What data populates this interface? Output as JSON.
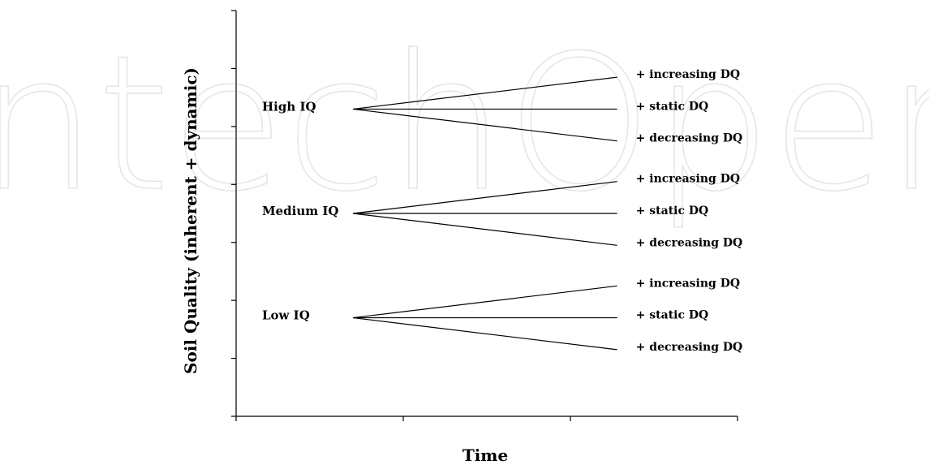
{
  "watermark": "IntechOpen",
  "chart_data": {
    "type": "line",
    "title": "",
    "xlabel": "Time",
    "ylabel": "Soil Quality (inherent + dynamic)",
    "xlim": [
      0,
      3
    ],
    "ylim": [
      0,
      7
    ],
    "x_ticks": [
      0,
      1,
      2,
      3
    ],
    "y_ticks": [
      0,
      1,
      2,
      3,
      4,
      5,
      6,
      7
    ],
    "tick_labels_shown": false,
    "grid": false,
    "legend": "none",
    "groups": [
      {
        "label": "High IQ",
        "start": {
          "x": 0.7,
          "y": 5.3
        },
        "branches": [
          {
            "label": "+ increasing DQ",
            "end": {
              "x": 2.28,
              "y": 5.85
            }
          },
          {
            "label": "+ static DQ",
            "end": {
              "x": 2.28,
              "y": 5.3
            }
          },
          {
            "label": "+ decreasing DQ",
            "end": {
              "x": 2.28,
              "y": 4.75
            }
          }
        ]
      },
      {
        "label": "Medium IQ",
        "start": {
          "x": 0.7,
          "y": 3.5
        },
        "branches": [
          {
            "label": "+ increasing DQ",
            "end": {
              "x": 2.28,
              "y": 4.05
            }
          },
          {
            "label": "+ static DQ",
            "end": {
              "x": 2.28,
              "y": 3.5
            }
          },
          {
            "label": "+ decreasing DQ",
            "end": {
              "x": 2.28,
              "y": 2.95
            }
          }
        ]
      },
      {
        "label": "Low IQ",
        "start": {
          "x": 0.7,
          "y": 1.7
        },
        "branches": [
          {
            "label": "+ increasing DQ",
            "end": {
              "x": 2.28,
              "y": 2.25
            }
          },
          {
            "label": "+ static DQ",
            "end": {
              "x": 2.28,
              "y": 1.7
            }
          },
          {
            "label": "+ decreasing DQ",
            "end": {
              "x": 2.28,
              "y": 1.15
            }
          }
        ]
      }
    ]
  }
}
